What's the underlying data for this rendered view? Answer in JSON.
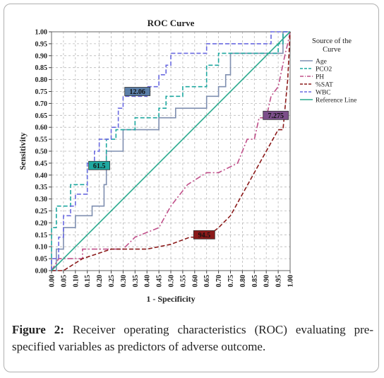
{
  "chart_data": {
    "type": "line",
    "title": "ROC Curve",
    "xlabel": "1 - Specificity",
    "ylabel": "Sensitivity",
    "xlim": [
      0,
      1
    ],
    "ylim": [
      0,
      1
    ],
    "grid": true,
    "legend_position": "right",
    "legend_title": "Source of the Curve",
    "x_ticks": [
      "0.00",
      "0.05",
      "0.10",
      "0.15",
      "0.20",
      "0.25",
      "0.30",
      "0.35",
      "0.40",
      "0.45",
      "0.50",
      "0.55",
      "0.60",
      "0.65",
      "0.70",
      "0.75",
      "0.80",
      "0.85",
      "0.90",
      "0.95",
      "1.00"
    ],
    "y_ticks": [
      "0.00",
      "0.05",
      "0.10",
      "0.15",
      "0.20",
      "0.25",
      "0.30",
      "0.35",
      "0.40",
      "0.45",
      "0.50",
      "0.55",
      "0.60",
      "0.65",
      "0.70",
      "0.75",
      "0.80",
      "0.85",
      "0.90",
      "0.95",
      "1.00"
    ],
    "series": [
      {
        "name": "Age",
        "color": "#7f8fb0",
        "dash": "solid",
        "points": [
          [
            0,
            0
          ],
          [
            0.02,
            0
          ],
          [
            0.02,
            0.09
          ],
          [
            0.05,
            0.09
          ],
          [
            0.05,
            0.18
          ],
          [
            0.1,
            0.18
          ],
          [
            0.1,
            0.23
          ],
          [
            0.17,
            0.23
          ],
          [
            0.17,
            0.27
          ],
          [
            0.22,
            0.27
          ],
          [
            0.22,
            0.36
          ],
          [
            0.23,
            0.36
          ],
          [
            0.23,
            0.5
          ],
          [
            0.3,
            0.5
          ],
          [
            0.3,
            0.55
          ],
          [
            0.3,
            0.59
          ],
          [
            0.45,
            0.59
          ],
          [
            0.45,
            0.64
          ],
          [
            0.52,
            0.64
          ],
          [
            0.52,
            0.68
          ],
          [
            0.65,
            0.68
          ],
          [
            0.65,
            0.73
          ],
          [
            0.7,
            0.73
          ],
          [
            0.7,
            0.77
          ],
          [
            0.73,
            0.77
          ],
          [
            0.73,
            0.82
          ],
          [
            0.75,
            0.82
          ],
          [
            0.75,
            0.91
          ],
          [
            0.97,
            0.91
          ],
          [
            0.97,
            1
          ],
          [
            1,
            1
          ]
        ]
      },
      {
        "name": "PCO2",
        "color": "#1fa8a0",
        "dash": "dash",
        "points": [
          [
            0,
            0
          ],
          [
            0,
            0.18
          ],
          [
            0.02,
            0.18
          ],
          [
            0.02,
            0.27
          ],
          [
            0.08,
            0.27
          ],
          [
            0.08,
            0.36
          ],
          [
            0.15,
            0.36
          ],
          [
            0.15,
            0.45
          ],
          [
            0.23,
            0.45
          ],
          [
            0.23,
            0.55
          ],
          [
            0.27,
            0.55
          ],
          [
            0.27,
            0.59
          ],
          [
            0.35,
            0.59
          ],
          [
            0.35,
            0.64
          ],
          [
            0.45,
            0.64
          ],
          [
            0.45,
            0.68
          ],
          [
            0.48,
            0.68
          ],
          [
            0.48,
            0.73
          ],
          [
            0.55,
            0.73
          ],
          [
            0.55,
            0.77
          ],
          [
            0.65,
            0.77
          ],
          [
            0.65,
            0.86
          ],
          [
            0.7,
            0.86
          ],
          [
            0.7,
            0.91
          ],
          [
            0.95,
            0.91
          ],
          [
            0.95,
            0.95
          ],
          [
            0.97,
            0.95
          ],
          [
            0.97,
            1
          ],
          [
            1,
            1
          ]
        ]
      },
      {
        "name": "PH",
        "color": "#c0508a",
        "dash": "dashdot",
        "points": [
          [
            0,
            0
          ],
          [
            0.03,
            0.05
          ],
          [
            0.13,
            0.05
          ],
          [
            0.13,
            0.09
          ],
          [
            0.3,
            0.09
          ],
          [
            0.35,
            0.14
          ],
          [
            0.45,
            0.18
          ],
          [
            0.5,
            0.27
          ],
          [
            0.57,
            0.36
          ],
          [
            0.65,
            0.41
          ],
          [
            0.7,
            0.41
          ],
          [
            0.78,
            0.45
          ],
          [
            0.82,
            0.55
          ],
          [
            0.85,
            0.55
          ],
          [
            0.87,
            0.64
          ],
          [
            0.9,
            0.64
          ],
          [
            0.92,
            0.73
          ],
          [
            0.95,
            0.77
          ],
          [
            0.98,
            0.91
          ],
          [
            0.99,
            0.95
          ],
          [
            1,
            1
          ]
        ]
      },
      {
        "name": "%SAT",
        "color": "#8b1a1a",
        "dash": "dash",
        "points": [
          [
            0,
            0
          ],
          [
            0.05,
            0
          ],
          [
            0.13,
            0.05
          ],
          [
            0.25,
            0.09
          ],
          [
            0.4,
            0.09
          ],
          [
            0.5,
            0.11
          ],
          [
            0.58,
            0.14
          ],
          [
            0.65,
            0.14
          ],
          [
            0.7,
            0.18
          ],
          [
            0.75,
            0.23
          ],
          [
            0.8,
            0.32
          ],
          [
            0.85,
            0.41
          ],
          [
            0.9,
            0.5
          ],
          [
            0.95,
            0.59
          ],
          [
            0.97,
            0.59
          ],
          [
            0.99,
            0.8
          ],
          [
            1,
            1
          ]
        ]
      },
      {
        "name": "WBC",
        "color": "#6a6ae0",
        "dash": "dash",
        "points": [
          [
            0,
            0
          ],
          [
            0,
            0.05
          ],
          [
            0.03,
            0.05
          ],
          [
            0.03,
            0.14
          ],
          [
            0.05,
            0.14
          ],
          [
            0.05,
            0.23
          ],
          [
            0.08,
            0.23
          ],
          [
            0.08,
            0.27
          ],
          [
            0.1,
            0.27
          ],
          [
            0.1,
            0.32
          ],
          [
            0.15,
            0.32
          ],
          [
            0.15,
            0.45
          ],
          [
            0.18,
            0.45
          ],
          [
            0.18,
            0.5
          ],
          [
            0.2,
            0.5
          ],
          [
            0.2,
            0.55
          ],
          [
            0.25,
            0.55
          ],
          [
            0.25,
            0.6
          ],
          [
            0.28,
            0.6
          ],
          [
            0.28,
            0.68
          ],
          [
            0.3,
            0.68
          ],
          [
            0.3,
            0.73
          ],
          [
            0.4,
            0.73
          ],
          [
            0.4,
            0.77
          ],
          [
            0.45,
            0.77
          ],
          [
            0.45,
            0.82
          ],
          [
            0.48,
            0.82
          ],
          [
            0.48,
            0.86
          ],
          [
            0.5,
            0.86
          ],
          [
            0.5,
            0.91
          ],
          [
            0.65,
            0.91
          ],
          [
            0.65,
            0.95
          ],
          [
            0.92,
            0.95
          ],
          [
            0.92,
            1
          ],
          [
            1,
            1
          ]
        ]
      },
      {
        "name": "Reference Line",
        "color": "#2aa98e",
        "dash": "solid",
        "points": [
          [
            0,
            0
          ],
          [
            1,
            1
          ]
        ]
      }
    ],
    "annotations": [
      {
        "text": "12.06",
        "x": 0.36,
        "y": 0.75,
        "bg": "#5b7fa8"
      },
      {
        "text": "61.5",
        "x": 0.2,
        "y": 0.44,
        "bg": "#1fa8a0"
      },
      {
        "text": "7.275",
        "x": 0.94,
        "y": 0.65,
        "bg": "#7c4f8a"
      },
      {
        "text": "94.5",
        "x": 0.64,
        "y": 0.15,
        "bg": "#8b1a1a"
      }
    ]
  },
  "caption": {
    "label": "Figure 2:",
    "text": " Receiver operating characteristics (ROC) evaluating pre-specified variables as predictors of adverse outcome."
  }
}
